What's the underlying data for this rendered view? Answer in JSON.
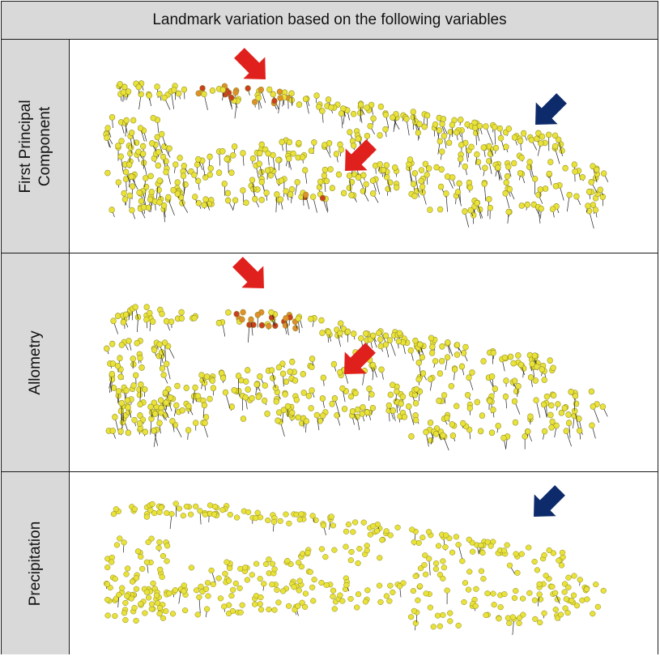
{
  "header": {
    "title": "Landmark variation based on the following variables"
  },
  "rows": [
    {
      "label_line1": "First Principal",
      "label_line2": "Component",
      "arrows": [
        "red",
        "red",
        "blue"
      ]
    },
    {
      "label_line1": "Allometry",
      "label_line2": "",
      "arrows": [
        "red",
        "red"
      ]
    },
    {
      "label_line1": "Precipitation",
      "label_line2": "",
      "arrows": [
        "blue"
      ]
    }
  ],
  "colors": {
    "header_bg": "#d9d9d9",
    "border": "#1a1a1a",
    "landmark_yellow": "#e8e23a",
    "landmark_orange": "#e0902a",
    "landmark_red": "#c8401e",
    "arrow_red": "#e0201c",
    "arrow_blue": "#0d2a6b",
    "vector_line": "#222222"
  }
}
